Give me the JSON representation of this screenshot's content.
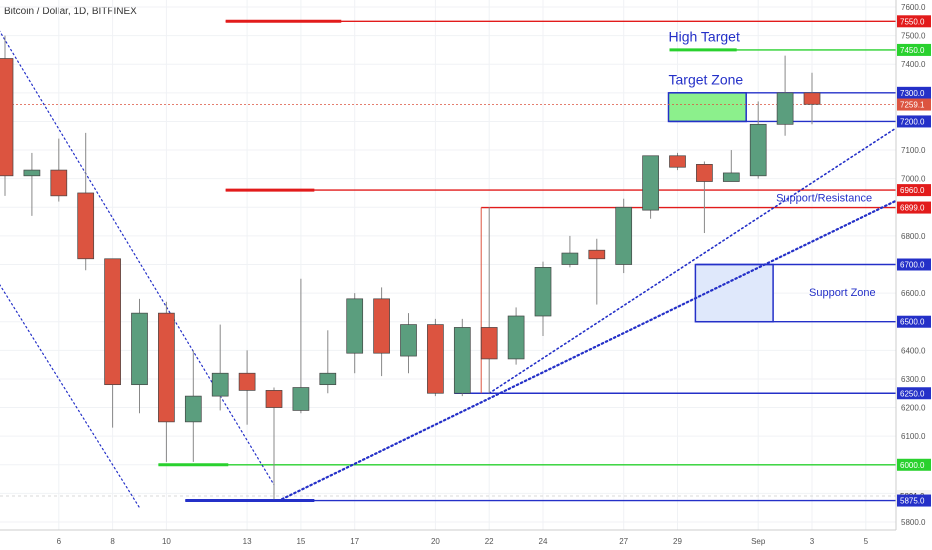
{
  "title": "Bitcoin / Dollar, 1D, BITFINEX",
  "colors": {
    "up": "#5b9e7e",
    "down": "#dc5440",
    "blue": "#2430c8",
    "red": "#e21b1b",
    "green": "#29d12e",
    "target_fill": "#8cf08c",
    "support_fill": "#dfe8fb"
  },
  "chart_data": {
    "type": "candlestick",
    "ylim": [
      5760,
      7640
    ],
    "y_ticks": [
      5800,
      5900,
      6000,
      6100,
      6200,
      6300,
      6400,
      6500,
      6600,
      6700,
      6800,
      6900,
      7000,
      7100,
      7200,
      7300,
      7400,
      7500,
      7600
    ],
    "y_tick_labels": [
      "5800.0",
      "5900.0",
      "6000.0",
      "6100.0",
      "6200.0",
      "6300.0",
      "6400.0",
      "6500.0",
      "6600.0",
      "6700.0",
      "6800.0",
      "6900.0",
      "7000.0",
      "7100.0",
      "7200.0",
      "7300.0",
      "7400.0",
      "7500.0",
      "7600.0"
    ],
    "x_ticks": [
      {
        "i": 2,
        "label": "6"
      },
      {
        "i": 4,
        "label": "8"
      },
      {
        "i": 6,
        "label": "10"
      },
      {
        "i": 9,
        "label": "13"
      },
      {
        "i": 11,
        "label": "15"
      },
      {
        "i": 13,
        "label": "17"
      },
      {
        "i": 16,
        "label": "20"
      },
      {
        "i": 18,
        "label": "22"
      },
      {
        "i": 20,
        "label": "24"
      },
      {
        "i": 23,
        "label": "27"
      },
      {
        "i": 25,
        "label": "29"
      },
      {
        "i": 28,
        "label": "Sep"
      },
      {
        "i": 30,
        "label": "3"
      },
      {
        "i": 32,
        "label": "5"
      }
    ],
    "candles": [
      {
        "o": 7420,
        "h": 7500,
        "l": 6940,
        "c": 7010
      },
      {
        "o": 7010,
        "h": 7090,
        "l": 6870,
        "c": 7030
      },
      {
        "o": 7030,
        "h": 7140,
        "l": 6920,
        "c": 6940
      },
      {
        "o": 6950,
        "h": 7160,
        "l": 6680,
        "c": 6720
      },
      {
        "o": 6720,
        "h": 6720,
        "l": 6130,
        "c": 6280
      },
      {
        "o": 6280,
        "h": 6580,
        "l": 6180,
        "c": 6530
      },
      {
        "o": 6530,
        "h": 6570,
        "l": 6010,
        "c": 6150
      },
      {
        "o": 6150,
        "h": 6400,
        "l": 6010,
        "c": 6240
      },
      {
        "o": 6240,
        "h": 6490,
        "l": 6190,
        "c": 6320
      },
      {
        "o": 6320,
        "h": 6400,
        "l": 6140,
        "c": 6260
      },
      {
        "o": 6260,
        "h": 6270,
        "l": 5880,
        "c": 6200
      },
      {
        "o": 6190,
        "h": 6650,
        "l": 6180,
        "c": 6270
      },
      {
        "o": 6280,
        "h": 6470,
        "l": 6250,
        "c": 6320
      },
      {
        "o": 6390,
        "h": 6600,
        "l": 6320,
        "c": 6580
      },
      {
        "o": 6580,
        "h": 6620,
        "l": 6310,
        "c": 6390
      },
      {
        "o": 6380,
        "h": 6530,
        "l": 6320,
        "c": 6490
      },
      {
        "o": 6490,
        "h": 6510,
        "l": 6240,
        "c": 6250
      },
      {
        "o": 6250,
        "h": 6510,
        "l": 6240,
        "c": 6480
      },
      {
        "o": 6480,
        "h": 6900,
        "l": 6250,
        "c": 6370
      },
      {
        "o": 6370,
        "h": 6550,
        "l": 6350,
        "c": 6520
      },
      {
        "o": 6520,
        "h": 6710,
        "l": 6450,
        "c": 6690
      },
      {
        "o": 6700,
        "h": 6800,
        "l": 6690,
        "c": 6740
      },
      {
        "o": 6750,
        "h": 6790,
        "l": 6560,
        "c": 6720
      },
      {
        "o": 6700,
        "h": 6930,
        "l": 6670,
        "c": 6900
      },
      {
        "o": 6890,
        "h": 7080,
        "l": 6860,
        "c": 7080
      },
      {
        "o": 7080,
        "h": 7090,
        "l": 7030,
        "c": 7040
      },
      {
        "o": 7050,
        "h": 7060,
        "l": 6810,
        "c": 6990
      },
      {
        "o": 6990,
        "h": 7100,
        "l": 6990,
        "c": 7020
      },
      {
        "o": 7010,
        "h": 7270,
        "l": 7000,
        "c": 7190
      },
      {
        "o": 7190,
        "h": 7430,
        "l": 7150,
        "c": 7300
      },
      {
        "o": 7300,
        "h": 7370,
        "l": 7190,
        "c": 7260
      }
    ],
    "horizontal_levels": [
      {
        "name": "r7550",
        "price": 7550,
        "color": "#e21b1b",
        "from_i": 8.5,
        "label": "7550.0"
      },
      {
        "name": "g7450",
        "price": 7450,
        "color": "#29d12e",
        "from_i": 25,
        "label": "7450.0"
      },
      {
        "name": "b7300",
        "price": 7300,
        "color": "#2430c8",
        "from_i": 25,
        "label": "7300.0"
      },
      {
        "name": "cur7259",
        "price": 7259.1,
        "color": "#dc5440",
        "from_i": -1,
        "label": "7259.1"
      },
      {
        "name": "b7200",
        "price": 7200,
        "color": "#2430c8",
        "from_i": 25,
        "label": "7200.0"
      },
      {
        "name": "r6960",
        "price": 6960,
        "color": "#e21b1b",
        "from_i": 8.5,
        "label": "6960.0"
      },
      {
        "name": "r6899",
        "price": 6899,
        "color": "#e21b1b",
        "from_i": 18,
        "label": "6899.0"
      },
      {
        "name": "b6700",
        "price": 6700,
        "color": "#2430c8",
        "from_i": 26,
        "label": "6700.0"
      },
      {
        "name": "b6500",
        "price": 6500,
        "color": "#2430c8",
        "from_i": 26,
        "label": "6500.0"
      },
      {
        "name": "b6250",
        "price": 6250,
        "color": "#2430c8",
        "from_i": 17,
        "label": "6250.0"
      },
      {
        "name": "g6000",
        "price": 6000,
        "color": "#29d12e",
        "from_i": 6,
        "label": "6000.0"
      },
      {
        "name": "p5891",
        "price": 5891,
        "color": "#cccccc",
        "from_i": -1,
        "label": "5891.0"
      },
      {
        "name": "b5875",
        "price": 5875,
        "color": "#2430c8",
        "from_i": 7,
        "label": "5875.0"
      }
    ],
    "zones": [
      {
        "name": "target-zone",
        "i0": 25,
        "i1": 28,
        "p_top": 7300,
        "p_bottom": 7200,
        "fill": "#8cf08c",
        "fill_to_i": 28
      },
      {
        "name": "support-zone",
        "i0": 26,
        "i1": 29,
        "p_top": 6700,
        "p_bottom": 6500,
        "fill": "#dfe8fb",
        "fill_to_i": 29
      }
    ],
    "annotations": [
      {
        "name": "high-target",
        "text": "High Target",
        "i": 25,
        "price": 7480,
        "size": 14
      },
      {
        "name": "target-zone",
        "text": "Target Zone",
        "i": 25,
        "price": 7330,
        "size": 14
      },
      {
        "name": "support-resistance",
        "text": "Support/Resistance",
        "i": 29,
        "price": 6920,
        "size": 11
      },
      {
        "name": "support-zone",
        "text": "Support Zone",
        "i": 30,
        "price": 6590,
        "size": 11
      }
    ],
    "trendlines": [
      {
        "name": "upper-downtrend",
        "i0": -1,
        "p0": 7640,
        "i1": 10,
        "p1": 5930,
        "width": 1.2
      },
      {
        "name": "lower-downtrend",
        "i0": -1,
        "p0": 6750,
        "i1": 5,
        "p1": 5850,
        "width": 1.2
      },
      {
        "name": "support-trendline-1",
        "i0": 10.3,
        "p0": 5880,
        "i1": 33.5,
        "p1": 6940,
        "width": 2.2
      },
      {
        "name": "support-trendline-2",
        "i0": 18,
        "p0": 6250,
        "i1": 33.5,
        "p1": 7200,
        "width": 1.6
      }
    ],
    "current_price": 7259.1
  }
}
